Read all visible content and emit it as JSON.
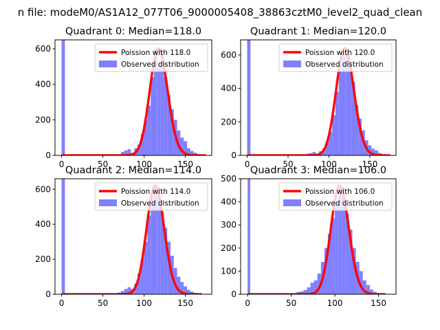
{
  "figure": {
    "suptitle": "n file: modeM0/AS1A12_077T06_9000005408_38863cztM0_level2_quad_clean"
  },
  "colors": {
    "hist": "#8080ff",
    "poisson": "#ff0000"
  },
  "chart_data": [
    {
      "type": "bar",
      "title": "Quadrant 0: Median=118.0",
      "xlim": [
        -8,
        182
      ],
      "ylim": [
        0,
        650
      ],
      "xticks": [
        0,
        50,
        100,
        150
      ],
      "xtick_labels": [
        "0",
        "50",
        "100",
        "150"
      ],
      "yticks": [
        0,
        200,
        400,
        600
      ],
      "ytick_labels": [
        "0",
        "200",
        "400",
        "600"
      ],
      "legend": {
        "placement": "top-right",
        "entries": [
          "Poission with 118.0",
          "Observed distribution"
        ]
      },
      "series": [
        {
          "name": "Poission with 118.0",
          "kind": "line",
          "mean": 118.0,
          "x_range": [
            0,
            175
          ]
        },
        {
          "name": "Observed distribution",
          "kind": "hist",
          "bins": [
            [
              0,
              4,
              650
            ],
            [
              68,
              72,
              5
            ],
            [
              72,
              76,
              20
            ],
            [
              76,
              80,
              28
            ],
            [
              80,
              84,
              35
            ],
            [
              84,
              88,
              15
            ],
            [
              88,
              92,
              40
            ],
            [
              92,
              96,
              60
            ],
            [
              96,
              100,
              120
            ],
            [
              100,
              104,
              200
            ],
            [
              104,
              108,
              280
            ],
            [
              108,
              112,
              440
            ],
            [
              112,
              116,
              600
            ],
            [
              116,
              120,
              520
            ],
            [
              120,
              124,
              500
            ],
            [
              124,
              128,
              440
            ],
            [
              128,
              132,
              340
            ],
            [
              132,
              136,
              260
            ],
            [
              136,
              140,
              200
            ],
            [
              140,
              144,
              140
            ],
            [
              144,
              148,
              100
            ],
            [
              148,
              152,
              80
            ],
            [
              152,
              156,
              40
            ],
            [
              156,
              160,
              25
            ],
            [
              160,
              164,
              15
            ],
            [
              164,
              168,
              8
            ]
          ]
        }
      ]
    },
    {
      "type": "bar",
      "title": "Quadrant 1: Median=120.0",
      "xlim": [
        -8,
        182
      ],
      "ylim": [
        0,
        690
      ],
      "xticks": [
        0,
        50,
        100,
        150
      ],
      "xtick_labels": [
        "0",
        "50",
        "100",
        "150"
      ],
      "yticks": [
        0,
        200,
        400,
        600
      ],
      "ytick_labels": [
        "0",
        "200",
        "400",
        "600"
      ],
      "legend": {
        "placement": "top-right",
        "entries": [
          "Poission with 120.0",
          "Observed distribution"
        ]
      },
      "series": [
        {
          "name": "Poission with 120.0",
          "kind": "line",
          "mean": 120.0,
          "x_range": [
            0,
            175
          ]
        },
        {
          "name": "Observed distribution",
          "kind": "hist",
          "bins": [
            [
              0,
              4,
              690
            ],
            [
              68,
              72,
              3
            ],
            [
              72,
              76,
              10
            ],
            [
              76,
              80,
              14
            ],
            [
              80,
              84,
              20
            ],
            [
              84,
              88,
              10
            ],
            [
              88,
              92,
              25
            ],
            [
              92,
              96,
              40
            ],
            [
              96,
              100,
              80
            ],
            [
              100,
              104,
              140
            ],
            [
              104,
              108,
              240
            ],
            [
              108,
              112,
              380
            ],
            [
              112,
              116,
              500
            ],
            [
              116,
              120,
              600
            ],
            [
              120,
              124,
              640
            ],
            [
              124,
              128,
              560
            ],
            [
              128,
              132,
              440
            ],
            [
              132,
              136,
              300
            ],
            [
              136,
              140,
              220
            ],
            [
              140,
              144,
              150
            ],
            [
              144,
              148,
              90
            ],
            [
              148,
              152,
              60
            ],
            [
              152,
              156,
              40
            ],
            [
              156,
              160,
              30
            ],
            [
              160,
              164,
              15
            ],
            [
              164,
              168,
              8
            ]
          ]
        }
      ]
    },
    {
      "type": "bar",
      "title": "Quadrant 2: Median=114.0",
      "xlim": [
        -8,
        182
      ],
      "ylim": [
        0,
        660
      ],
      "xticks": [
        0,
        50,
        100,
        150
      ],
      "xtick_labels": [
        "0",
        "50",
        "100",
        "150"
      ],
      "yticks": [
        0,
        200,
        400,
        600
      ],
      "ytick_labels": [
        "0",
        "200",
        "400",
        "600"
      ],
      "legend": {
        "placement": "top-right",
        "entries": [
          "Poission with 114.0",
          "Observed distribution"
        ]
      },
      "series": [
        {
          "name": "Poission with 114.0",
          "kind": "line",
          "mean": 114.0,
          "x_range": [
            0,
            170
          ]
        },
        {
          "name": "Observed distribution",
          "kind": "hist",
          "bins": [
            [
              0,
              4,
              660
            ],
            [
              64,
              68,
              3
            ],
            [
              68,
              72,
              10
            ],
            [
              72,
              76,
              18
            ],
            [
              76,
              80,
              30
            ],
            [
              80,
              84,
              40
            ],
            [
              84,
              88,
              30
            ],
            [
              88,
              92,
              60
            ],
            [
              92,
              96,
              120
            ],
            [
              96,
              100,
              200
            ],
            [
              100,
              104,
              300
            ],
            [
              104,
              108,
              450
            ],
            [
              108,
              112,
              560
            ],
            [
              112,
              116,
              620
            ],
            [
              116,
              120,
              560
            ],
            [
              120,
              124,
              470
            ],
            [
              124,
              128,
              380
            ],
            [
              128,
              132,
              300
            ],
            [
              132,
              136,
              220
            ],
            [
              136,
              140,
              150
            ],
            [
              140,
              144,
              100
            ],
            [
              144,
              148,
              70
            ],
            [
              148,
              152,
              45
            ],
            [
              152,
              156,
              25
            ],
            [
              156,
              160,
              15
            ],
            [
              160,
              164,
              8
            ]
          ]
        }
      ]
    },
    {
      "type": "bar",
      "title": "Quadrant 3: Median=106.0",
      "xlim": [
        -8,
        170
      ],
      "ylim": [
        0,
        500
      ],
      "xticks": [
        0,
        50,
        100,
        150
      ],
      "xtick_labels": [
        "0",
        "50",
        "100",
        "150"
      ],
      "yticks": [
        0,
        100,
        200,
        300,
        400,
        500
      ],
      "ytick_labels": [
        "0",
        "100",
        "200",
        "300",
        "400",
        "500"
      ],
      "legend": {
        "placement": "top-right",
        "entries": [
          "Poission with 106.0",
          "Observed distribution"
        ]
      },
      "series": [
        {
          "name": "Poission with 106.0",
          "kind": "line",
          "mean": 106.0,
          "x_range": [
            0,
            158
          ]
        },
        {
          "name": "Observed distribution",
          "kind": "hist",
          "bins": [
            [
              0,
              3,
              500
            ],
            [
              56,
              60,
              10
            ],
            [
              60,
              64,
              12
            ],
            [
              64,
              68,
              18
            ],
            [
              68,
              72,
              30
            ],
            [
              72,
              76,
              50
            ],
            [
              76,
              80,
              60
            ],
            [
              80,
              84,
              90
            ],
            [
              84,
              88,
              140
            ],
            [
              88,
              92,
              200
            ],
            [
              92,
              96,
              260
            ],
            [
              96,
              100,
              330
            ],
            [
              100,
              104,
              400
            ],
            [
              104,
              108,
              470
            ],
            [
              108,
              112,
              420
            ],
            [
              112,
              116,
              350
            ],
            [
              116,
              120,
              280
            ],
            [
              120,
              124,
              200
            ],
            [
              124,
              128,
              140
            ],
            [
              128,
              132,
              100
            ],
            [
              132,
              136,
              60
            ],
            [
              136,
              140,
              40
            ],
            [
              140,
              144,
              20
            ],
            [
              144,
              148,
              10
            ],
            [
              148,
              152,
              5
            ]
          ]
        }
      ]
    }
  ]
}
